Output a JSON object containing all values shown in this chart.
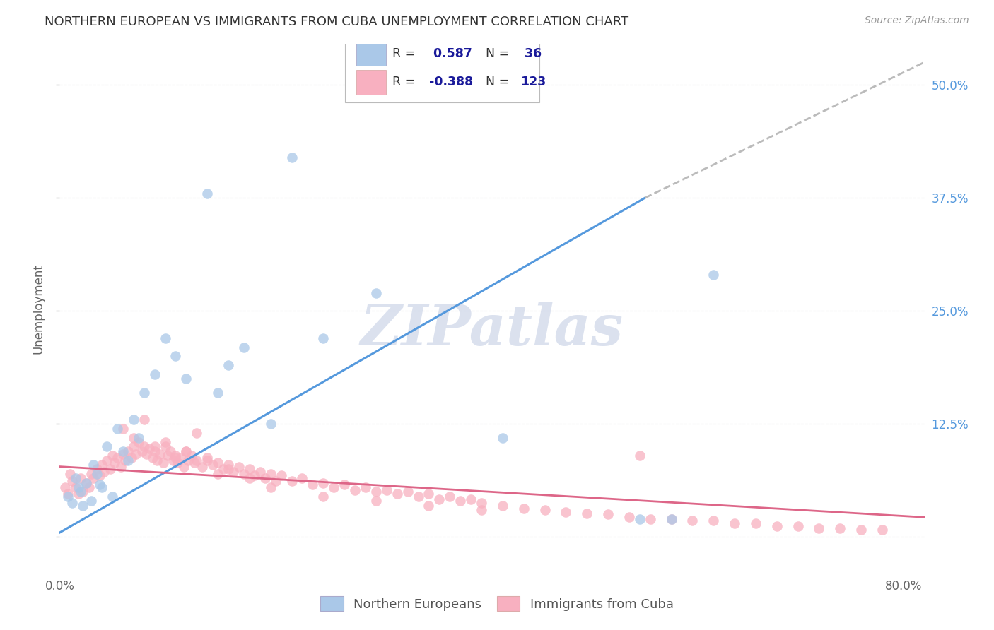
{
  "title": "NORTHERN EUROPEAN VS IMMIGRANTS FROM CUBA UNEMPLOYMENT CORRELATION CHART",
  "source": "Source: ZipAtlas.com",
  "ylabel": "Unemployment",
  "xlim": [
    0.0,
    0.82
  ],
  "ylim": [
    -0.04,
    0.545
  ],
  "xtick_positions": [
    0.0,
    0.2,
    0.4,
    0.6,
    0.8
  ],
  "xtick_labels": [
    "0.0%",
    "",
    "",
    "",
    "80.0%"
  ],
  "ytick_positions": [
    0.0,
    0.125,
    0.25,
    0.375,
    0.5
  ],
  "ytick_labels_right": [
    "",
    "12.5%",
    "25.0%",
    "37.5%",
    "50.0%"
  ],
  "grid_color": "#d0d0d8",
  "background_color": "#ffffff",
  "blue_R": "0.587",
  "blue_N": "36",
  "pink_R": "-0.388",
  "pink_N": "123",
  "blue_scatter_color": "#aac8e8",
  "pink_scatter_color": "#f8b0c0",
  "blue_line_color": "#5599dd",
  "pink_line_color": "#dd6688",
  "dashed_line_color": "#bbbbbb",
  "legend_text_color": "#1a1a9a",
  "legend_label_color": "#333333",
  "blue_scatter_x": [
    0.008,
    0.012,
    0.015,
    0.018,
    0.02,
    0.022,
    0.025,
    0.03,
    0.032,
    0.035,
    0.038,
    0.04,
    0.045,
    0.05,
    0.055,
    0.06,
    0.065,
    0.07,
    0.075,
    0.08,
    0.09,
    0.1,
    0.11,
    0.12,
    0.14,
    0.15,
    0.16,
    0.175,
    0.2,
    0.22,
    0.25,
    0.3,
    0.42,
    0.55,
    0.58,
    0.62
  ],
  "blue_scatter_y": [
    0.045,
    0.038,
    0.065,
    0.055,
    0.05,
    0.035,
    0.06,
    0.04,
    0.08,
    0.07,
    0.058,
    0.055,
    0.1,
    0.045,
    0.12,
    0.095,
    0.085,
    0.13,
    0.11,
    0.16,
    0.18,
    0.22,
    0.2,
    0.175,
    0.38,
    0.16,
    0.19,
    0.21,
    0.125,
    0.42,
    0.22,
    0.27,
    0.11,
    0.02,
    0.02,
    0.29
  ],
  "pink_scatter_x": [
    0.005,
    0.008,
    0.01,
    0.012,
    0.015,
    0.018,
    0.02,
    0.022,
    0.025,
    0.028,
    0.03,
    0.032,
    0.035,
    0.038,
    0.04,
    0.042,
    0.045,
    0.048,
    0.05,
    0.052,
    0.055,
    0.058,
    0.06,
    0.062,
    0.065,
    0.068,
    0.07,
    0.072,
    0.075,
    0.078,
    0.08,
    0.082,
    0.085,
    0.088,
    0.09,
    0.092,
    0.095,
    0.098,
    0.1,
    0.102,
    0.105,
    0.108,
    0.11,
    0.112,
    0.115,
    0.118,
    0.12,
    0.122,
    0.125,
    0.128,
    0.13,
    0.135,
    0.14,
    0.145,
    0.15,
    0.155,
    0.16,
    0.165,
    0.17,
    0.175,
    0.18,
    0.185,
    0.19,
    0.195,
    0.2,
    0.205,
    0.21,
    0.22,
    0.23,
    0.24,
    0.25,
    0.26,
    0.27,
    0.28,
    0.29,
    0.3,
    0.31,
    0.32,
    0.33,
    0.34,
    0.35,
    0.36,
    0.37,
    0.38,
    0.39,
    0.4,
    0.42,
    0.44,
    0.46,
    0.48,
    0.5,
    0.52,
    0.54,
    0.56,
    0.58,
    0.6,
    0.62,
    0.64,
    0.66,
    0.68,
    0.7,
    0.72,
    0.74,
    0.76,
    0.78,
    0.06,
    0.08,
    0.1,
    0.12,
    0.14,
    0.16,
    0.18,
    0.2,
    0.35,
    0.55,
    0.3,
    0.13,
    0.07,
    0.09,
    0.11,
    0.15,
    0.25,
    0.4
  ],
  "pink_scatter_y": [
    0.055,
    0.048,
    0.07,
    0.062,
    0.055,
    0.048,
    0.065,
    0.05,
    0.06,
    0.055,
    0.07,
    0.065,
    0.075,
    0.068,
    0.08,
    0.072,
    0.085,
    0.075,
    0.09,
    0.082,
    0.088,
    0.078,
    0.092,
    0.085,
    0.095,
    0.088,
    0.1,
    0.092,
    0.105,
    0.095,
    0.1,
    0.092,
    0.098,
    0.088,
    0.095,
    0.085,
    0.092,
    0.082,
    0.1,
    0.09,
    0.095,
    0.085,
    0.09,
    0.082,
    0.088,
    0.078,
    0.095,
    0.085,
    0.09,
    0.082,
    0.085,
    0.078,
    0.088,
    0.08,
    0.082,
    0.075,
    0.08,
    0.072,
    0.078,
    0.07,
    0.075,
    0.068,
    0.072,
    0.065,
    0.07,
    0.062,
    0.068,
    0.062,
    0.065,
    0.058,
    0.06,
    0.055,
    0.058,
    0.052,
    0.055,
    0.05,
    0.052,
    0.048,
    0.05,
    0.045,
    0.048,
    0.042,
    0.045,
    0.04,
    0.042,
    0.038,
    0.035,
    0.032,
    0.03,
    0.028,
    0.026,
    0.025,
    0.022,
    0.02,
    0.02,
    0.018,
    0.018,
    0.015,
    0.015,
    0.012,
    0.012,
    0.01,
    0.01,
    0.008,
    0.008,
    0.12,
    0.13,
    0.105,
    0.095,
    0.085,
    0.075,
    0.065,
    0.055,
    0.035,
    0.09,
    0.04,
    0.115,
    0.11,
    0.1,
    0.088,
    0.07,
    0.045,
    0.03
  ],
  "blue_trendline_x": [
    0.0,
    0.555
  ],
  "blue_trendline_y": [
    0.005,
    0.375
  ],
  "dashed_trendline_x": [
    0.555,
    0.82
  ],
  "dashed_trendline_y": [
    0.375,
    0.525
  ],
  "pink_trendline_x": [
    0.0,
    0.82
  ],
  "pink_trendline_y": [
    0.078,
    0.022
  ],
  "watermark_text": "ZIPatlas",
  "watermark_color": "#ccd5e8",
  "title_fontsize": 13,
  "source_fontsize": 10,
  "axis_label_fontsize": 12,
  "scatter_size": 110,
  "scatter_alpha": 0.75
}
